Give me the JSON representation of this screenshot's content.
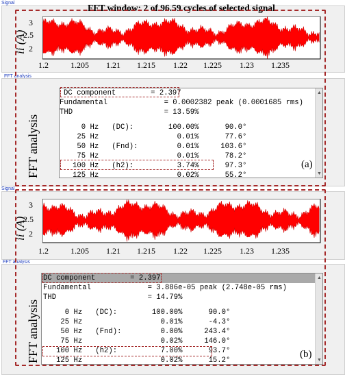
{
  "top": {
    "signal_label": "Signal",
    "fft_label": "FFT analysis",
    "title": "FFT window: 2 of 96.59 cycles of selected signal",
    "y_label": "ii (A)",
    "y_ticks": [
      "3",
      "2.5",
      "2"
    ],
    "x_ticks": [
      "1.2",
      "1.205",
      "1.21",
      "1.215",
      "1.22",
      "1.225",
      "1.23",
      "1.235"
    ],
    "side_label": "FFT analysis",
    "dc_line": "DC component        = 2.397",
    "fund_line": "Fundamental             = 0.0002382 peak (0.0001685 rms)",
    "thd_line": "THD                     = 13.59%",
    "rows": [
      "     0 Hz   (DC):        100.00%      90.0°",
      "    25 Hz                  0.01%      77.6°",
      "    50 Hz   (Fnd):         0.01%     103.6°",
      "    75 Hz                  0.01%      78.2°",
      "   100 Hz   (h2):          3.74%      97.3°",
      "   125 Hz                  0.02%      55.2°"
    ],
    "tag": "(a)"
  },
  "bottom": {
    "signal_label": "Signal",
    "fft_label": "FFT analysis",
    "y_label": "ii (A)",
    "y_ticks": [
      "3",
      "2.5",
      "2"
    ],
    "x_ticks": [
      "1.2",
      "1.205",
      "1.21",
      "1.215",
      "1.22",
      "1.225",
      "1.23",
      "1.235"
    ],
    "side_label": "FFT analysis",
    "dc_line": "DC component        = 2.397",
    "fund_line": "Fundamental             = 3.886e-05 peak (2.748e-05 rms)",
    "thd_line": "THD                     = 14.79%",
    "rows": [
      "     0 Hz   (DC):        100.00%      90.0°",
      "    25 Hz                  0.01%      -4.3°",
      "    50 Hz   (Fnd):         0.00%     243.4°",
      "    75 Hz                  0.02%     146.0°",
      "   100 Hz   (h2):          7.00%      93.7°",
      "   125 Hz                  0.02%      15.2°"
    ],
    "tag": "(b)"
  },
  "colors": {
    "signal": "#ff0000",
    "signal_core": "#b00000",
    "dash": "#a52a2a",
    "label_blue": "#1f3fbf"
  }
}
